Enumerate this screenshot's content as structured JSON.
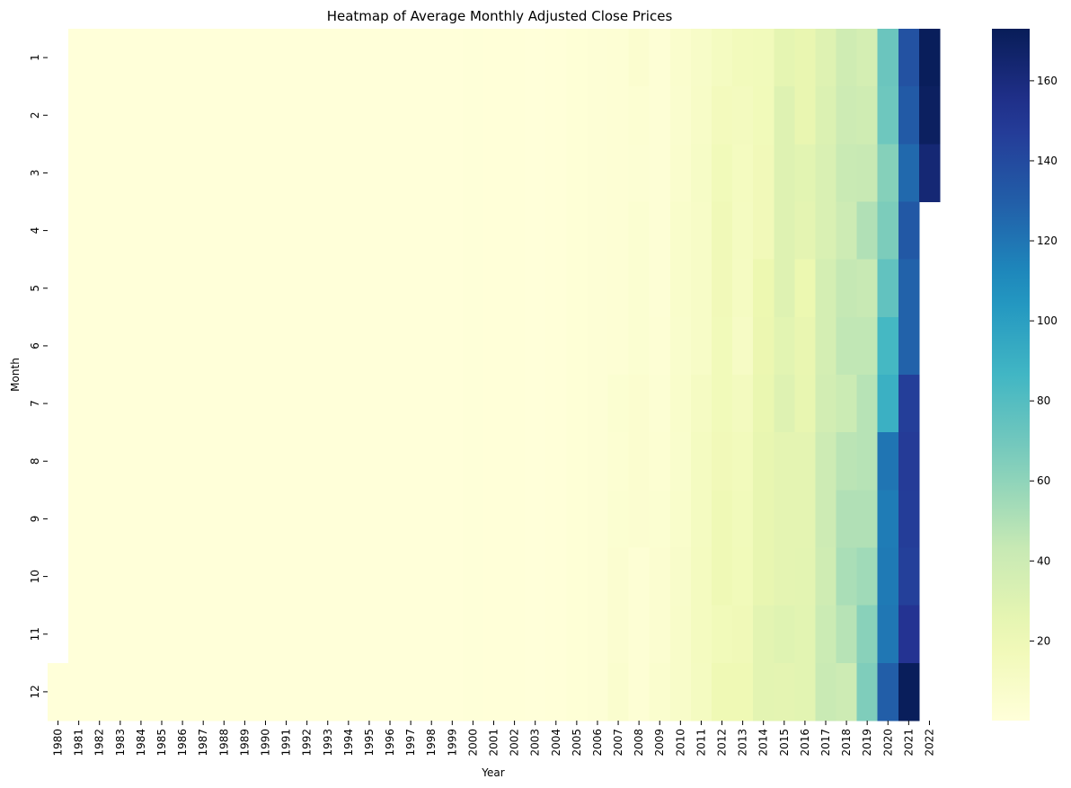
{
  "chart_data": {
    "type": "heatmap",
    "title": "Heatmap of Average Monthly Adjusted Close Prices",
    "xlabel": "Year",
    "ylabel": "Month",
    "colormap": "YlGnBu",
    "vmin": 0.1,
    "vmax": 173,
    "colorbar_ticks": [
      20,
      40,
      60,
      80,
      100,
      120,
      140,
      160
    ],
    "years": [
      "1980",
      "1981",
      "1982",
      "1983",
      "1984",
      "1985",
      "1986",
      "1987",
      "1988",
      "1989",
      "1990",
      "1991",
      "1992",
      "1993",
      "1994",
      "1995",
      "1996",
      "1997",
      "1998",
      "1999",
      "2000",
      "2001",
      "2002",
      "2003",
      "2004",
      "2005",
      "2006",
      "2007",
      "2008",
      "2009",
      "2010",
      "2011",
      "2012",
      "2013",
      "2014",
      "2015",
      "2016",
      "2017",
      "2018",
      "2019",
      "2020",
      "2021",
      "2022"
    ],
    "months": [
      "1",
      "2",
      "3",
      "4",
      "5",
      "6",
      "7",
      "8",
      "9",
      "10",
      "11",
      "12"
    ],
    "values": [
      [
        null,
        0.1,
        0.1,
        0.1,
        0.1,
        0.1,
        0.1,
        0.1,
        0.1,
        0.1,
        0.1,
        0.1,
        0.1,
        0.1,
        0.1,
        0.1,
        0.1,
        0.1,
        0.1,
        0.1,
        0.8,
        0.6,
        0.5,
        0.3,
        0.5,
        1.5,
        2.5,
        3.0,
        5.5,
        2.5,
        6.5,
        9.5,
        13.0,
        15.5,
        16.5,
        26.0,
        24.0,
        30.0,
        39.0,
        36.0,
        72.0,
        136.0,
        172.0
      ],
      [
        null,
        0.1,
        0.1,
        0.1,
        0.1,
        0.1,
        0.1,
        0.1,
        0.1,
        0.1,
        0.1,
        0.1,
        0.1,
        0.1,
        0.1,
        0.1,
        0.1,
        0.1,
        0.1,
        0.1,
        0.8,
        0.6,
        0.5,
        0.3,
        0.5,
        1.5,
        2.5,
        3.0,
        4.0,
        2.0,
        6.0,
        10.0,
        15.0,
        14.0,
        17.0,
        30.0,
        24.0,
        32.0,
        40.0,
        39.0,
        71.0,
        132.0,
        170.0
      ],
      [
        null,
        0.1,
        0.1,
        0.1,
        0.1,
        0.1,
        0.1,
        0.1,
        0.1,
        0.1,
        0.1,
        0.1,
        0.1,
        0.1,
        0.1,
        0.1,
        0.1,
        0.1,
        0.1,
        0.1,
        0.8,
        0.6,
        0.5,
        0.3,
        0.5,
        1.5,
        2.5,
        3.0,
        3.5,
        2.0,
        6.5,
        10.5,
        17.0,
        13.5,
        17.5,
        30.0,
        28.0,
        33.0,
        42.0,
        43.0,
        63.0,
        125.0,
        163.0
      ],
      [
        null,
        0.1,
        0.1,
        0.1,
        0.1,
        0.1,
        0.1,
        0.1,
        0.1,
        0.1,
        0.1,
        0.1,
        0.1,
        0.1,
        0.1,
        0.1,
        0.1,
        0.1,
        0.1,
        0.1,
        0.8,
        0.6,
        0.5,
        0.3,
        0.5,
        1.5,
        2.5,
        3.0,
        4.5,
        2.5,
        7.5,
        10.0,
        18.0,
        13.0,
        17.5,
        30.0,
        27.0,
        33.0,
        40.0,
        50.0,
        66.0,
        133.0,
        null
      ],
      [
        null,
        0.1,
        0.1,
        0.1,
        0.1,
        0.1,
        0.1,
        0.1,
        0.1,
        0.1,
        0.1,
        0.1,
        0.1,
        0.1,
        0.1,
        0.1,
        0.1,
        0.1,
        0.1,
        0.1,
        0.8,
        0.6,
        0.5,
        0.3,
        0.5,
        1.5,
        2.5,
        3.0,
        4.5,
        2.5,
        7.5,
        10.0,
        17.5,
        12.5,
        21.5,
        30.0,
        22.0,
        36.0,
        44.0,
        43.0,
        75.0,
        128.0,
        null
      ],
      [
        null,
        0.1,
        0.1,
        0.1,
        0.1,
        0.1,
        0.1,
        0.1,
        0.1,
        0.1,
        0.1,
        0.1,
        0.1,
        0.1,
        0.1,
        0.1,
        0.1,
        0.1,
        0.1,
        0.1,
        0.8,
        0.6,
        0.5,
        0.3,
        0.5,
        1.5,
        2.5,
        3.0,
        4.5,
        3.0,
        7.0,
        10.0,
        17.0,
        11.0,
        22.5,
        28.0,
        24.0,
        36.0,
        45.0,
        45.0,
        85.0,
        128.0,
        null
      ],
      [
        null,
        0.1,
        0.1,
        0.1,
        0.1,
        0.1,
        0.1,
        0.1,
        0.1,
        0.1,
        0.1,
        0.1,
        0.1,
        0.1,
        0.1,
        0.1,
        0.1,
        0.1,
        0.1,
        0.1,
        0.8,
        0.6,
        0.5,
        0.3,
        0.5,
        1.5,
        2.5,
        4.5,
        5.5,
        3.5,
        7.5,
        12.0,
        17.0,
        14.0,
        23.5,
        30.0,
        24.5,
        37.0,
        41.0,
        48.0,
        90.0,
        146.0,
        null
      ],
      [
        null,
        0.1,
        0.1,
        0.1,
        0.1,
        0.1,
        0.1,
        0.1,
        0.1,
        0.1,
        0.1,
        0.1,
        0.1,
        0.1,
        0.1,
        0.1,
        0.1,
        0.1,
        0.1,
        0.1,
        0.8,
        0.6,
        0.5,
        0.3,
        0.5,
        1.5,
        2.5,
        4.0,
        5.5,
        4.0,
        7.0,
        13.0,
        17.5,
        16.0,
        24.5,
        27.0,
        27.0,
        40.0,
        47.0,
        48.0,
        120.0,
        148.0,
        null
      ],
      [
        null,
        0.1,
        0.1,
        0.1,
        0.1,
        0.1,
        0.1,
        0.1,
        0.1,
        0.1,
        0.1,
        0.1,
        0.1,
        0.1,
        0.1,
        0.1,
        0.1,
        0.1,
        0.1,
        0.1,
        0.8,
        0.6,
        0.5,
        0.3,
        0.5,
        1.5,
        2.5,
        4.5,
        5.0,
        4.5,
        7.5,
        13.0,
        19.0,
        16.5,
        24.5,
        27.0,
        27.0,
        40.0,
        50.0,
        50.0,
        117.0,
        147.0,
        null
      ],
      [
        null,
        0.1,
        0.1,
        0.1,
        0.1,
        0.1,
        0.1,
        0.1,
        0.1,
        0.1,
        0.1,
        0.1,
        0.1,
        0.1,
        0.1,
        0.1,
        0.1,
        0.1,
        0.1,
        0.1,
        0.8,
        0.6,
        0.5,
        0.3,
        0.5,
        1.5,
        2.5,
        5.0,
        3.0,
        5.0,
        8.0,
        13.5,
        19.0,
        17.0,
        24.5,
        27.0,
        27.5,
        39.0,
        52.0,
        55.0,
        118.0,
        145.0,
        null
      ],
      [
        null,
        0.1,
        0.1,
        0.1,
        0.1,
        0.1,
        0.1,
        0.1,
        0.1,
        0.1,
        0.1,
        0.1,
        0.1,
        0.1,
        0.1,
        0.1,
        0.1,
        0.1,
        0.1,
        0.1,
        0.8,
        0.6,
        0.5,
        0.3,
        0.5,
        1.5,
        2.5,
        5.0,
        3.0,
        5.0,
        8.5,
        13.5,
        17.0,
        18.0,
        27.5,
        29.5,
        28.0,
        41.0,
        48.0,
        62.0,
        119.0,
        152.0,
        null
      ],
      [
        0.1,
        0.1,
        0.1,
        0.1,
        0.1,
        0.1,
        0.1,
        0.1,
        0.1,
        0.1,
        0.1,
        0.1,
        0.1,
        0.1,
        0.1,
        0.1,
        0.1,
        0.1,
        0.1,
        0.1,
        0.8,
        0.6,
        0.5,
        0.3,
        0.5,
        1.5,
        2.5,
        6.0,
        3.0,
        6.0,
        9.0,
        13.0,
        19.5,
        19.5,
        27.5,
        27.0,
        28.0,
        42.0,
        40.0,
        65.0,
        130.0,
        172.0,
        null
      ]
    ]
  }
}
